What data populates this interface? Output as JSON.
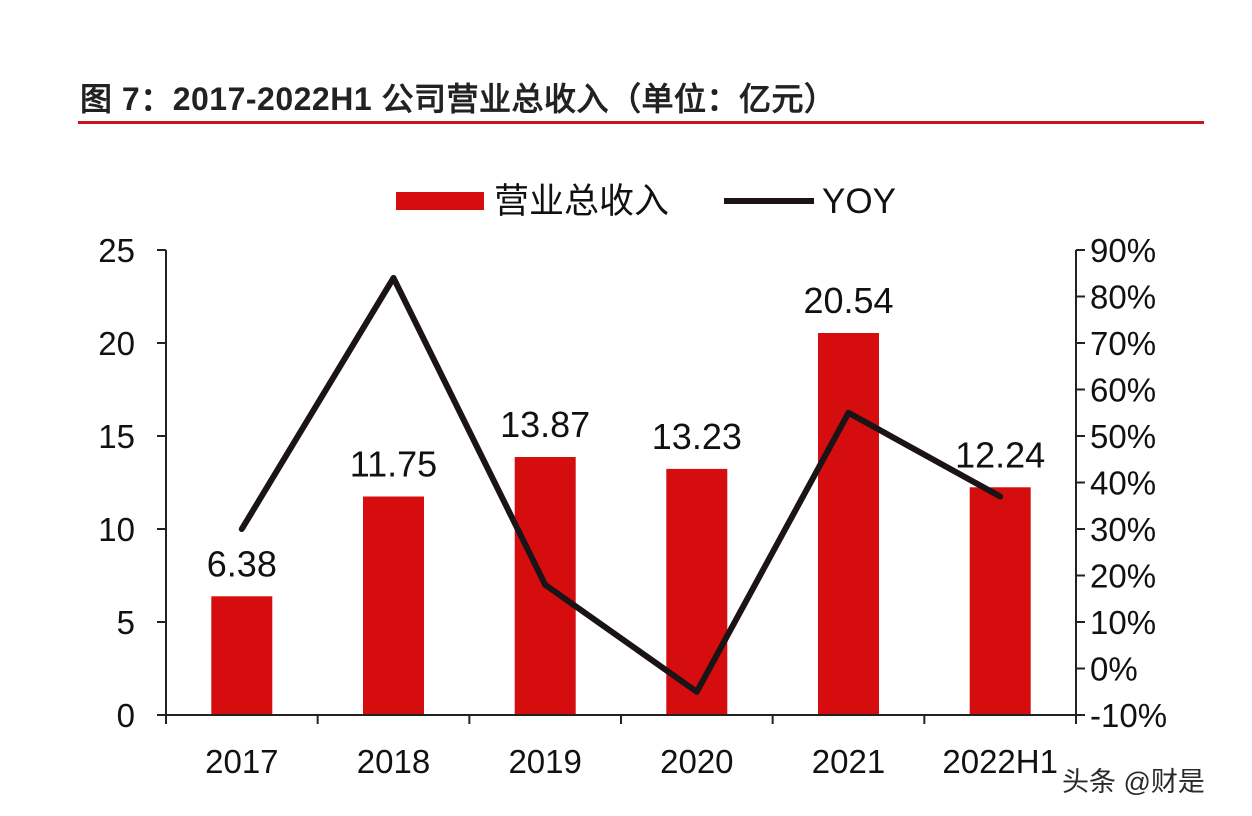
{
  "figure": {
    "title": "图 7：2017-2022H1 公司营业总收入（单位：亿元）",
    "rule_color": "#c8151b"
  },
  "watermark": "头条 @财是",
  "colors": {
    "bar": "#d50d0e",
    "line": "#1b1416",
    "axis": "#222222"
  },
  "chart_data": {
    "type": "bar",
    "categories": [
      "2017",
      "2018",
      "2019",
      "2020",
      "2021",
      "2022H1"
    ],
    "series": [
      {
        "name": "营业总收入",
        "type": "bar",
        "axis": "left",
        "values": [
          6.38,
          11.75,
          13.87,
          13.23,
          20.54,
          12.24
        ],
        "data_labels": [
          "6.38",
          "11.75",
          "13.87",
          "13.23",
          "20.54",
          "12.24"
        ]
      },
      {
        "name": "YOY",
        "type": "line",
        "axis": "right",
        "values": [
          30,
          84,
          18,
          -5,
          55,
          37
        ]
      }
    ],
    "y_left": {
      "min": 0,
      "max": 25,
      "ticks": [
        0,
        5,
        10,
        15,
        20,
        25
      ],
      "tick_labels": [
        "0",
        "5",
        "10",
        "15",
        "20",
        "25"
      ]
    },
    "y_right": {
      "min": -10,
      "max": 90,
      "ticks": [
        -10,
        0,
        10,
        20,
        30,
        40,
        50,
        60,
        70,
        80,
        90
      ],
      "tick_labels": [
        "-10%",
        "0%",
        "10%",
        "20%",
        "30%",
        "40%",
        "50%",
        "60%",
        "70%",
        "80%",
        "90%"
      ]
    },
    "legend": {
      "position": "top-center",
      "entries": [
        "营业总收入",
        "YOY"
      ]
    },
    "grid": false
  }
}
